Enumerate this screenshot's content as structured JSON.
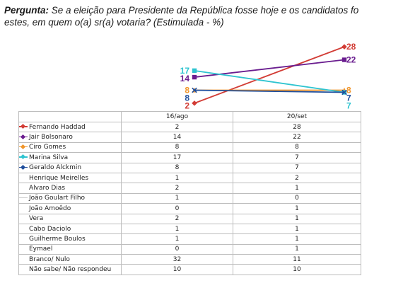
{
  "question": {
    "label": "Pergunta:",
    "text_line1": " Se a eleição para Presidente da República fosse hoje e os candidatos fo",
    "text_line2": "estes, em quem o(a) sr(a) votaria? (Estimulada - %)"
  },
  "chart_data": {
    "type": "line",
    "x": [
      "16/ago",
      "20/set"
    ],
    "series": [
      {
        "name": "Fernando Haddad",
        "values": [
          2,
          28
        ],
        "color": "#d23c35",
        "marker": "diamond",
        "plotted": true
      },
      {
        "name": "Jair Bolsonaro",
        "values": [
          14,
          22
        ],
        "color": "#6a1d8f",
        "marker": "square",
        "plotted": true
      },
      {
        "name": "Ciro Gomes",
        "values": [
          8,
          8
        ],
        "color": "#f0952a",
        "marker": "triangle",
        "plotted": true
      },
      {
        "name": "Marina Silva",
        "values": [
          17,
          7
        ],
        "color": "#2ec4d0",
        "marker": "square",
        "plotted": true
      },
      {
        "name": "Geraldo Alckmin",
        "values": [
          8,
          7
        ],
        "color": "#1f4e9c",
        "marker": "cross",
        "plotted": true
      },
      {
        "name": "Henrique Meirelles",
        "values": [
          1,
          2
        ],
        "plotted": false
      },
      {
        "name": "Alvaro Dias",
        "values": [
          2,
          1
        ],
        "plotted": false
      },
      {
        "name": "João Goulart Filho",
        "values": [
          1,
          0
        ],
        "plotted": false,
        "faint_marker": true
      },
      {
        "name": "João Amoêdo",
        "values": [
          0,
          1
        ],
        "plotted": false
      },
      {
        "name": "Vera",
        "values": [
          2,
          1
        ],
        "plotted": false
      },
      {
        "name": "Cabo Daciolo",
        "values": [
          1,
          1
        ],
        "plotted": false
      },
      {
        "name": "Guilherme Boulos",
        "values": [
          1,
          1
        ],
        "plotted": false
      },
      {
        "name": "Eymael",
        "values": [
          0,
          1
        ],
        "plotted": false
      },
      {
        "name": "Branco/ Nulo",
        "values": [
          32,
          11
        ],
        "plotted": false
      },
      {
        "name": "Não sabe/ Não respondeu",
        "values": [
          10,
          10
        ],
        "plotted": false
      }
    ],
    "end_labels": {
      "left": [
        {
          "series": "Marina Silva",
          "text": "17"
        },
        {
          "series": "Jair Bolsonaro",
          "text": "14"
        },
        {
          "series": "Ciro Gomes",
          "text": "8"
        },
        {
          "series": "Geraldo Alckmin",
          "text": "8"
        },
        {
          "series": "Fernando Haddad",
          "text": "2"
        }
      ],
      "right": [
        {
          "series": "Fernando Haddad",
          "text": "28"
        },
        {
          "series": "Jair Bolsonaro",
          "text": "22"
        },
        {
          "series": "Ciro Gomes",
          "text": "8"
        },
        {
          "series": "Geraldo Alckmin",
          "text": "7"
        },
        {
          "series": "Marina Silva",
          "text": "7"
        }
      ]
    },
    "ylim": [
      0,
      30
    ],
    "grid": false,
    "legend": "table"
  }
}
